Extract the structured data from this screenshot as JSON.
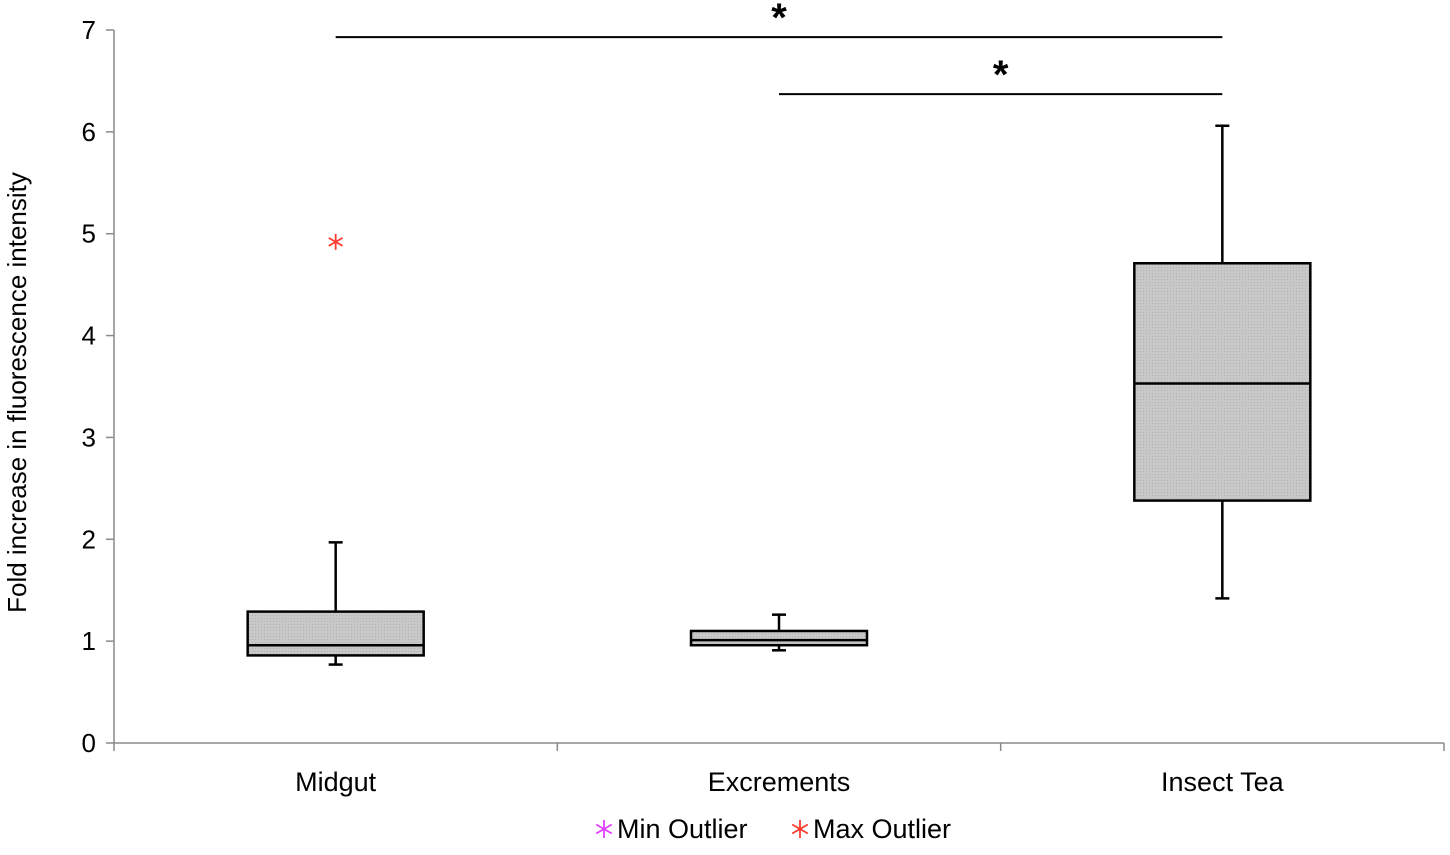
{
  "chart_data": {
    "type": "box",
    "title": "",
    "xlabel": "",
    "ylabel": "Fold increase in fluorescence intensity",
    "ylim": [
      0,
      7
    ],
    "yticks": [
      "0",
      "1",
      "2",
      "3",
      "4",
      "5",
      "6",
      "7"
    ],
    "grid": false,
    "categories": [
      "Midgut",
      "Excrements",
      "Insect Tea"
    ],
    "boxes": [
      {
        "category": "Midgut",
        "whisker_low": 0.77,
        "q1": 0.86,
        "median": 0.96,
        "q3": 1.29,
        "whisker_high": 1.97,
        "max_outliers": [
          4.92
        ],
        "min_outliers": []
      },
      {
        "category": "Excrements",
        "whisker_low": 0.91,
        "q1": 0.96,
        "median": 1.01,
        "q3": 1.1,
        "whisker_high": 1.26,
        "max_outliers": [],
        "min_outliers": []
      },
      {
        "category": "Insect Tea",
        "whisker_low": 1.42,
        "q1": 2.38,
        "median": 3.53,
        "q3": 4.71,
        "whisker_high": 6.06,
        "max_outliers": [],
        "min_outliers": []
      }
    ],
    "significance": [
      {
        "from": "Midgut",
        "to": "Insect Tea",
        "y": 6.93,
        "label": "*"
      },
      {
        "from": "Excrements",
        "to": "Insect Tea",
        "y": 6.37,
        "label": "*"
      }
    ],
    "legend": {
      "position": "bottom",
      "items": [
        {
          "label": "Min Outlier",
          "color": "#e040fb",
          "marker": "asterisk"
        },
        {
          "label": "Max Outlier",
          "color": "#ff3b30",
          "marker": "asterisk"
        }
      ]
    },
    "colors": {
      "box_fill": "#c6c6c6",
      "stroke": "#000000",
      "axis": "#8a8a8a"
    }
  }
}
